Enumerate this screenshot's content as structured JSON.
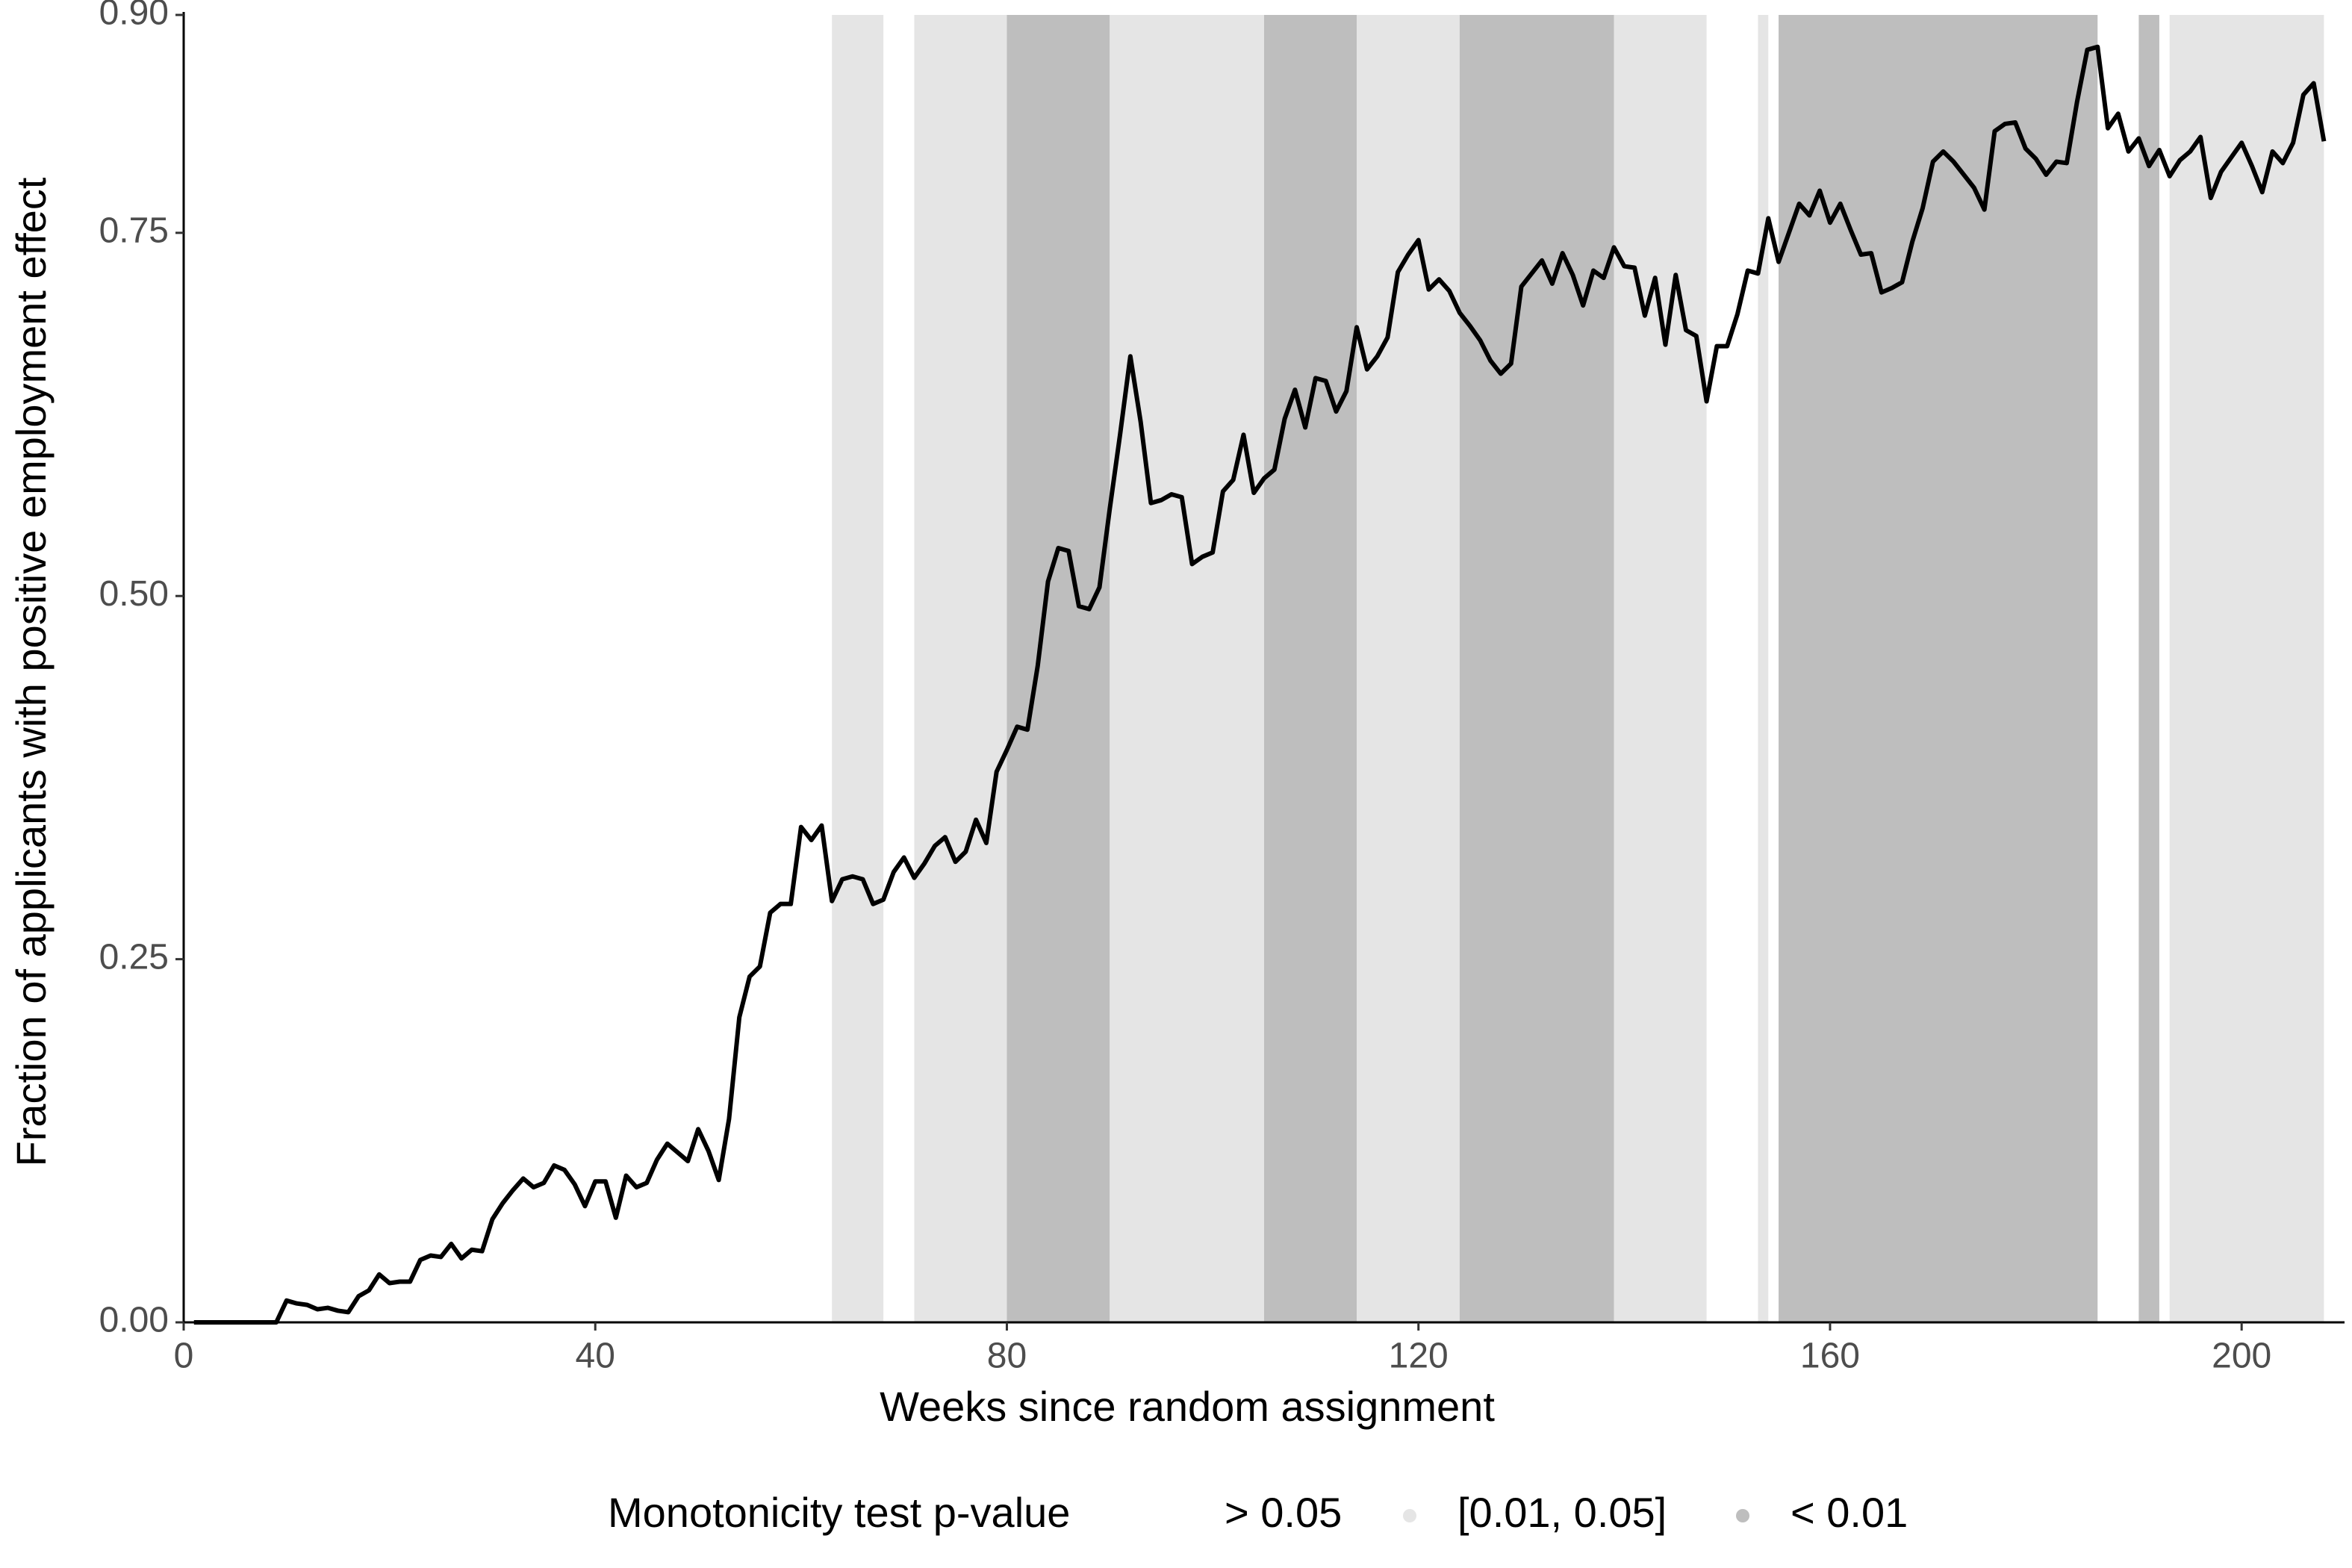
{
  "chart_data": {
    "type": "line",
    "x_label": "Weeks since random assignment",
    "y_label": "Fraction of applicants with positive employment effect",
    "xlim": [
      0,
      210
    ],
    "ylim": [
      0,
      0.9
    ],
    "xticks": [
      0,
      40,
      80,
      120,
      160,
      200
    ],
    "yticks": [
      {
        "value": 0,
        "label": "0.00"
      },
      {
        "value": 0.25,
        "label": "0.25"
      },
      {
        "value": 0.5,
        "label": "0.50"
      },
      {
        "value": 0.75,
        "label": "0.75"
      },
      {
        "value": 0.9,
        "label": "0.90"
      }
    ],
    "legend_title": "Monotonicity test p-value",
    "legend": [
      {
        "label": "> 0.05",
        "color": "#ffffff"
      },
      {
        "label": "[0.01, 0.05]",
        "color": "#e5e5e5"
      },
      {
        "label": "< 0.01",
        "color": "#bebebe"
      }
    ],
    "bands": [
      {
        "start": 63,
        "end": 68,
        "level": 1
      },
      {
        "start": 71,
        "end": 80,
        "level": 1
      },
      {
        "start": 80,
        "end": 90,
        "level": 2
      },
      {
        "start": 90,
        "end": 105,
        "level": 1
      },
      {
        "start": 105,
        "end": 114,
        "level": 2
      },
      {
        "start": 114,
        "end": 124,
        "level": 1
      },
      {
        "start": 124,
        "end": 139,
        "level": 2
      },
      {
        "start": 139,
        "end": 148,
        "level": 1
      },
      {
        "start": 153,
        "end": 154,
        "level": 1
      },
      {
        "start": 155,
        "end": 186,
        "level": 2
      },
      {
        "start": 190,
        "end": 192,
        "level": 2
      },
      {
        "start": 193,
        "end": 208,
        "level": 1
      }
    ],
    "series": [
      {
        "color": "#000000",
        "x": [
          1,
          2,
          3,
          4,
          5,
          6,
          7,
          8,
          9,
          10,
          11,
          12,
          13,
          14,
          15,
          16,
          17,
          18,
          19,
          20,
          21,
          22,
          23,
          24,
          25,
          26,
          27,
          28,
          29,
          30,
          31,
          32,
          33,
          34,
          35,
          36,
          37,
          38,
          39,
          40,
          41,
          42,
          43,
          44,
          45,
          46,
          47,
          48,
          49,
          50,
          51,
          52,
          53,
          54,
          55,
          56,
          57,
          58,
          59,
          60,
          61,
          62,
          63,
          64,
          65,
          66,
          67,
          68,
          69,
          70,
          71,
          72,
          73,
          74,
          75,
          76,
          77,
          78,
          79,
          80,
          81,
          82,
          83,
          84,
          85,
          86,
          87,
          88,
          89,
          90,
          91,
          92,
          93,
          94,
          95,
          96,
          97,
          98,
          99,
          100,
          101,
          102,
          103,
          104,
          105,
          106,
          107,
          108,
          109,
          110,
          111,
          112,
          113,
          114,
          115,
          116,
          117,
          118,
          119,
          120,
          121,
          122,
          123,
          124,
          125,
          126,
          127,
          128,
          129,
          130,
          131,
          132,
          133,
          134,
          135,
          136,
          137,
          138,
          139,
          140,
          141,
          142,
          143,
          144,
          145,
          146,
          147,
          148,
          149,
          150,
          151,
          152,
          153,
          154,
          155,
          156,
          157,
          158,
          159,
          160,
          161,
          162,
          163,
          164,
          165,
          166,
          167,
          168,
          169,
          170,
          171,
          172,
          173,
          174,
          175,
          176,
          177,
          178,
          179,
          180,
          181,
          182,
          183,
          184,
          185,
          186,
          187,
          188,
          189,
          190,
          191,
          192,
          193,
          194,
          195,
          196,
          197,
          198,
          199,
          200,
          201,
          202,
          203,
          204,
          205,
          206,
          207,
          208
        ],
        "values": [
          0,
          0,
          0,
          0,
          0,
          0,
          0,
          0,
          0,
          0.015,
          0.013,
          0.012,
          0.009,
          0.01,
          0.008,
          0.007,
          0.018,
          0.022,
          0.033,
          0.027,
          0.028,
          0.028,
          0.043,
          0.046,
          0.045,
          0.054,
          0.044,
          0.05,
          0.049,
          0.071,
          0.082,
          0.091,
          0.099,
          0.093,
          0.096,
          0.108,
          0.105,
          0.095,
          0.08,
          0.097,
          0.097,
          0.072,
          0.101,
          0.093,
          0.096,
          0.112,
          0.123,
          0.117,
          0.111,
          0.133,
          0.118,
          0.098,
          0.14,
          0.21,
          0.238,
          0.245,
          0.282,
          0.288,
          0.288,
          0.341,
          0.332,
          0.342,
          0.29,
          0.305,
          0.307,
          0.305,
          0.288,
          0.291,
          0.31,
          0.32,
          0.306,
          0.316,
          0.328,
          0.334,
          0.317,
          0.324,
          0.346,
          0.33,
          0.379,
          0.394,
          0.41,
          0.408,
          0.452,
          0.51,
          0.533,
          0.531,
          0.493,
          0.491,
          0.506,
          0.56,
          0.611,
          0.665,
          0.62,
          0.564,
          0.566,
          0.57,
          0.568,
          0.522,
          0.527,
          0.53,
          0.572,
          0.58,
          0.611,
          0.571,
          0.581,
          0.587,
          0.622,
          0.642,
          0.616,
          0.65,
          0.648,
          0.627,
          0.641,
          0.685,
          0.656,
          0.665,
          0.678,
          0.723,
          0.735,
          0.745,
          0.711,
          0.718,
          0.71,
          0.695,
          0.686,
          0.676,
          0.662,
          0.653,
          0.66,
          0.713,
          0.722,
          0.731,
          0.715,
          0.736,
          0.721,
          0.7,
          0.724,
          0.719,
          0.74,
          0.727,
          0.726,
          0.693,
          0.719,
          0.673,
          0.721,
          0.683,
          0.679,
          0.634,
          0.672,
          0.672,
          0.694,
          0.724,
          0.722,
          0.76,
          0.73,
          0.75,
          0.77,
          0.762,
          0.779,
          0.757,
          0.77,
          0.752,
          0.735,
          0.736,
          0.709,
          0.712,
          0.716,
          0.744,
          0.767,
          0.799,
          0.806,
          0.799,
          0.79,
          0.781,
          0.766,
          0.82,
          0.825,
          0.826,
          0.808,
          0.801,
          0.79,
          0.799,
          0.798,
          0.84,
          0.876,
          0.878,
          0.822,
          0.832,
          0.806,
          0.815,
          0.796,
          0.807,
          0.789,
          0.8,
          0.806,
          0.816,
          0.774,
          0.792,
          0.802,
          0.812,
          0.796,
          0.778,
          0.806,
          0.798,
          0.812,
          0.845,
          0.853,
          0.813
        ]
      }
    ]
  }
}
